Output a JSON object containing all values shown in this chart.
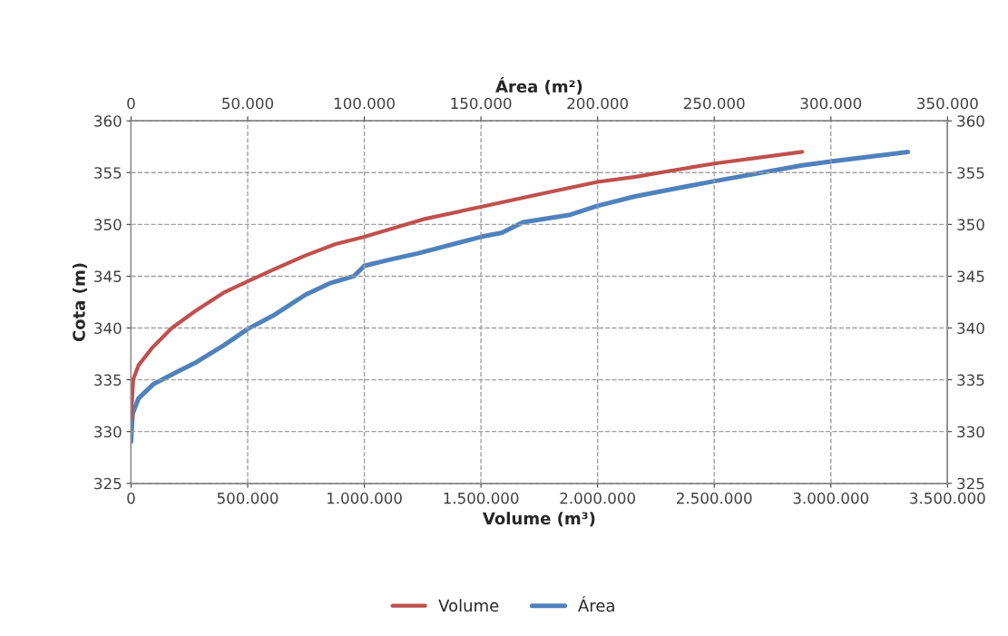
{
  "chart_data": {
    "type": "line",
    "xlabel": "Volume (m³)",
    "x2label": "Área (m²)",
    "ylabel": "Cota (m)",
    "xlim": [
      0,
      3500000
    ],
    "xticks": [
      0,
      {
        "value": 500000,
        "label": "500.000"
      },
      {
        "value": 1000000,
        "label": "1.000.000"
      },
      {
        "value": 1500000,
        "label": "1.500.000"
      },
      {
        "value": 2000000,
        "label": "2.000.000"
      },
      {
        "value": 2500000,
        "label": "2.500.000"
      },
      {
        "value": 3000000,
        "label": "3.000.000"
      },
      {
        "value": 3500000,
        "label": "3.500.000"
      }
    ],
    "x2lim": [
      0,
      350000
    ],
    "x2ticks": [
      0,
      {
        "value": 50000,
        "label": "50.000"
      },
      {
        "value": 100000,
        "label": "100.000"
      },
      {
        "value": 150000,
        "label": "150.000"
      },
      {
        "value": 200000,
        "label": "200.000"
      },
      {
        "value": 250000,
        "label": "250.000"
      },
      {
        "value": 300000,
        "label": "300.000"
      },
      {
        "value": 350000,
        "label": "350.000"
      }
    ],
    "ylim": [
      325,
      360
    ],
    "yticks": [
      325,
      330,
      335,
      340,
      345,
      350,
      355,
      360
    ],
    "y2lim": [
      325,
      360
    ],
    "y2ticks": [
      325,
      330,
      335,
      340,
      345,
      350,
      355,
      360
    ],
    "grid": true,
    "legend": "bottom",
    "marker": "none",
    "line_style": "solid",
    "series": [
      {
        "name": "Volume",
        "color": "#c0504d",
        "x": [
          0,
          9000,
          32000,
          91000,
          175000,
          273000,
          396000,
          500000,
          617000,
          747000,
          877000,
          1000000,
          1253000,
          1500000,
          1747000,
          2000000,
          2163000,
          2319000,
          2507000,
          2877000
        ],
        "values": [
          331.2,
          335,
          336.4,
          338.1,
          340.0,
          341.6,
          343.4,
          344.5,
          345.7,
          347.0,
          348.1,
          348.8,
          350.5,
          351.7,
          352.9,
          354.1,
          354.6,
          355.2,
          355.9,
          357.0
        ]
      },
      {
        "name": "Área",
        "color": "#4f81bd",
        "axis": "x2",
        "x": [
          0,
          650,
          3200,
          9700,
          20000,
          28000,
          39600,
          50000,
          61700,
          74700,
          85000,
          95500,
          100000,
          111000,
          122800,
          150000,
          159000,
          168000,
          187700,
          200000,
          216000,
          232000,
          250700,
          287700,
          300700,
          333000
        ],
        "values": [
          329.0,
          331.7,
          333.2,
          334.6,
          335.8,
          336.7,
          338.3,
          339.9,
          341.3,
          343.2,
          344.3,
          345.0,
          346.0,
          346.6,
          347.2,
          348.8,
          349.2,
          350.2,
          350.9,
          351.8,
          352.7,
          353.4,
          354.2,
          355.7,
          356.1,
          357.0
        ]
      }
    ]
  }
}
